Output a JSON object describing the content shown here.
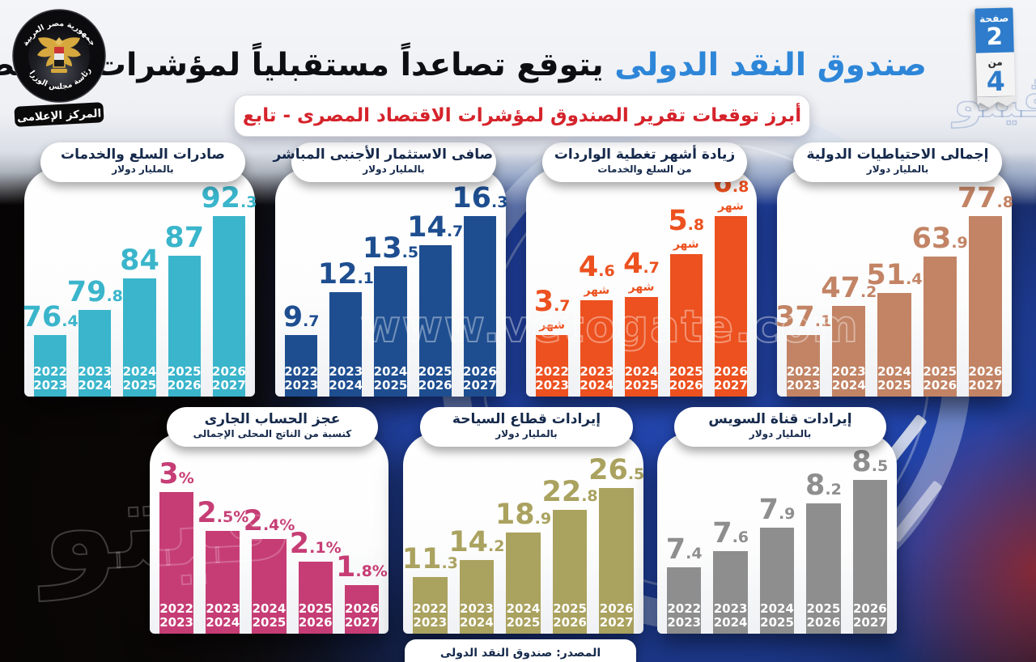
{
  "header": {
    "title_highlight": "صندوق النقد الدولى",
    "title_rest": "يتوقع تصاعداً مستقبلياً لمؤشرات الاقتصاد المصرى",
    "subtitle_banner": "أبرز توقعات تقرير الصندوق لمؤشرات الاقتصاد المصرى - تابع",
    "page_badge": {
      "page_word": "صفحة",
      "page_number": "2",
      "of_word": "من",
      "total_pages": "4"
    }
  },
  "emblem": {
    "arc_top": "جمهورية مصر العربية",
    "arc_bottom": "رئاسة مجلس الوزراء",
    "banner": "المركز الإعلامى"
  },
  "watermarks": {
    "center": "www.vetogate.com",
    "logo": "ڤيتو"
  },
  "footer": {
    "source": "المصدر: صندوق النقد الدولى"
  },
  "chart_data": [
    {
      "id": "exports-goods-services",
      "type": "bar",
      "title": "صادرات السلع والخدمات",
      "subtitle": "بالمليار دولار",
      "color": "#3ab5cb",
      "categories": [
        [
          "2022",
          "2023"
        ],
        [
          "2023",
          "2024"
        ],
        [
          "2024",
          "2025"
        ],
        [
          "2025",
          "2026"
        ],
        [
          "2026",
          "2027"
        ]
      ],
      "values": [
        76.4,
        79.8,
        84,
        87,
        92.3
      ],
      "value_suffix": "",
      "value_sub_label": ""
    },
    {
      "id": "net-foreign-direct-investment",
      "type": "bar",
      "title": "صافى الاستثمار الأجنبى المباشر",
      "subtitle": "بالمليار دولار",
      "color": "#1e4e90",
      "categories": [
        [
          "2022",
          "2023"
        ],
        [
          "2023",
          "2024"
        ],
        [
          "2024",
          "2025"
        ],
        [
          "2025",
          "2026"
        ],
        [
          "2026",
          "2027"
        ]
      ],
      "values": [
        9.7,
        12.1,
        13.5,
        14.7,
        16.3
      ],
      "value_suffix": "",
      "value_sub_label": ""
    },
    {
      "id": "import-coverage-months",
      "type": "bar",
      "title": "زيادة أشهر تغطية الواردات",
      "subtitle": "من السلع والخدمات",
      "color": "#ec511f",
      "categories": [
        [
          "2022",
          "2023"
        ],
        [
          "2023",
          "2024"
        ],
        [
          "2024",
          "2025"
        ],
        [
          "2025",
          "2026"
        ],
        [
          "2026",
          "2027"
        ]
      ],
      "values": [
        3.7,
        4.6,
        4.7,
        5.8,
        6.8
      ],
      "value_suffix": "",
      "value_sub_label": "شهر"
    },
    {
      "id": "international-reserves",
      "type": "bar",
      "title": "إجمالى الاحتياطيات الدولية",
      "subtitle": "بالمليار دولار",
      "color": "#c28465",
      "categories": [
        [
          "2022",
          "2023"
        ],
        [
          "2023",
          "2024"
        ],
        [
          "2024",
          "2025"
        ],
        [
          "2025",
          "2026"
        ],
        [
          "2026",
          "2027"
        ]
      ],
      "values": [
        37.1,
        47.2,
        51.4,
        63.9,
        77.8
      ],
      "value_suffix": "",
      "value_sub_label": ""
    },
    {
      "id": "current-account-deficit",
      "type": "bar",
      "title": "عجز الحساب الجارى",
      "subtitle": "كنسبة من الناتج المحلى الإجمالى",
      "color": "#c63d75",
      "categories": [
        [
          "2022",
          "2023"
        ],
        [
          "2023",
          "2024"
        ],
        [
          "2024",
          "2025"
        ],
        [
          "2025",
          "2026"
        ],
        [
          "2026",
          "2027"
        ]
      ],
      "values": [
        3,
        2.5,
        2.4,
        2.1,
        1.8
      ],
      "value_suffix": "%",
      "value_sub_label": ""
    },
    {
      "id": "tourism-revenues",
      "type": "bar",
      "title": "إيرادات قطاع السياحة",
      "subtitle": "بالمليار دولار",
      "color": "#aaa25f",
      "categories": [
        [
          "2022",
          "2023"
        ],
        [
          "2023",
          "2024"
        ],
        [
          "2024",
          "2025"
        ],
        [
          "2025",
          "2026"
        ],
        [
          "2026",
          "2027"
        ]
      ],
      "values": [
        11.3,
        14.2,
        18.9,
        22.8,
        26.5
      ],
      "value_suffix": "",
      "value_sub_label": ""
    },
    {
      "id": "suez-canal-revenues",
      "type": "bar",
      "title": "إيرادات قناة السويس",
      "subtitle": "بالمليار دولار",
      "color": "#8e8e8e",
      "categories": [
        [
          "2022",
          "2023"
        ],
        [
          "2023",
          "2024"
        ],
        [
          "2024",
          "2025"
        ],
        [
          "2025",
          "2026"
        ],
        [
          "2026",
          "2027"
        ]
      ],
      "values": [
        7.4,
        7.6,
        7.9,
        8.2,
        8.5
      ],
      "value_suffix": "",
      "value_sub_label": ""
    }
  ]
}
